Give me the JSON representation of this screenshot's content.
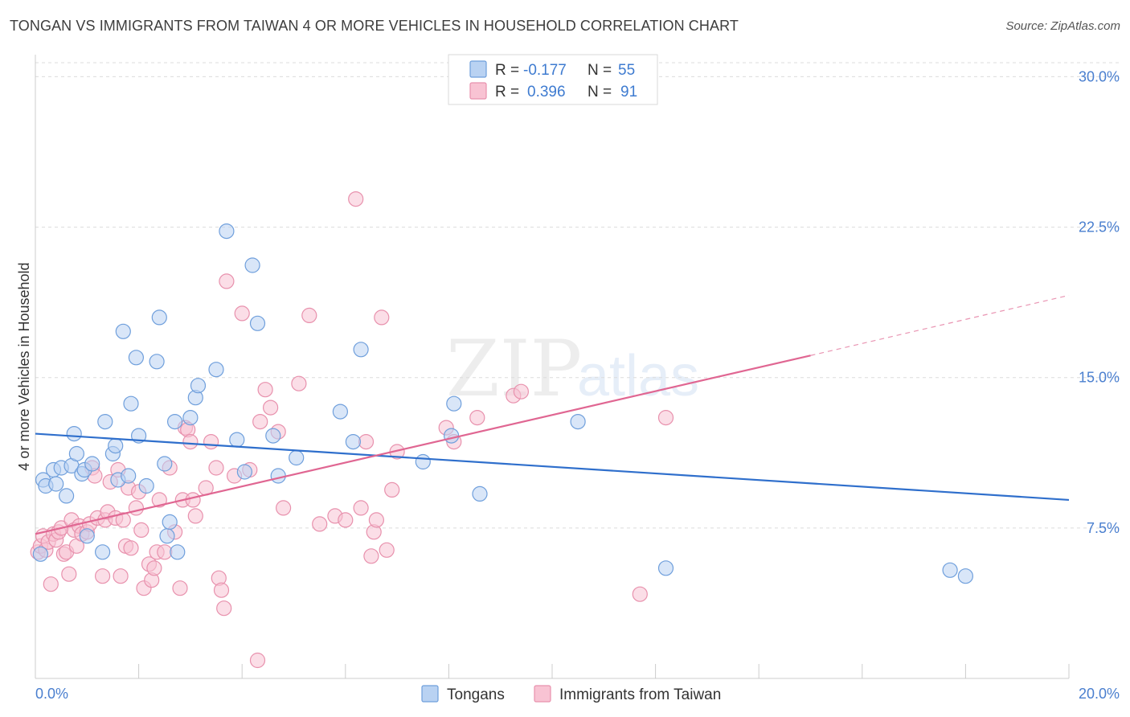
{
  "title": "TONGAN VS IMMIGRANTS FROM TAIWAN 4 OR MORE VEHICLES IN HOUSEHOLD CORRELATION CHART",
  "source": "Source: ZipAtlas.com",
  "watermark": {
    "zip": "ZIP",
    "atlas": "atlas"
  },
  "colors": {
    "tongans_fill": "#b9d2f2",
    "tongans_stroke": "#6f9fdc",
    "tongans_line": "#2f6fcc",
    "taiwan_fill": "#f8c3d3",
    "taiwan_stroke": "#e891ad",
    "taiwan_line": "#e06692",
    "grid": "#dcdcdc",
    "tick_label": "#4a7fcf"
  },
  "legend": {
    "rows": [
      {
        "r_label": "R =",
        "r_value": "-0.177",
        "n_label": "N =",
        "n_value": "55"
      },
      {
        "r_label": "R =",
        "r_value": "0.396",
        "n_label": "N =",
        "n_value": "91"
      }
    ]
  },
  "chart_data": {
    "type": "scatter",
    "title": "TONGAN VS IMMIGRANTS FROM TAIWAN 4 OR MORE VEHICLES IN HOUSEHOLD CORRELATION CHART",
    "xlabel": "",
    "ylabel": "4 or more Vehicles in Household",
    "xlim": [
      0,
      20
    ],
    "ylim": [
      0,
      31.5
    ],
    "x_tick_labels": [
      "0.0%",
      "20.0%"
    ],
    "y_ticks": [
      7.5,
      15.0,
      22.5,
      30.0
    ],
    "y_tick_labels": [
      "7.5%",
      "15.0%",
      "22.5%",
      "30.0%"
    ],
    "legend_position": "top-center",
    "series": [
      {
        "name": "Tongans",
        "r": -0.177,
        "n": 55,
        "trend": {
          "x": [
            0,
            20
          ],
          "y": [
            12.2,
            8.9
          ]
        },
        "points": [
          [
            0.1,
            6.2
          ],
          [
            0.15,
            9.9
          ],
          [
            0.2,
            9.6
          ],
          [
            0.35,
            10.4
          ],
          [
            0.4,
            9.7
          ],
          [
            0.5,
            10.5
          ],
          [
            0.6,
            9.1
          ],
          [
            0.7,
            10.6
          ],
          [
            0.75,
            12.2
          ],
          [
            0.8,
            11.2
          ],
          [
            0.9,
            10.2
          ],
          [
            0.95,
            10.4
          ],
          [
            1.0,
            7.1
          ],
          [
            1.1,
            10.7
          ],
          [
            1.3,
            6.3
          ],
          [
            1.35,
            12.8
          ],
          [
            1.5,
            11.2
          ],
          [
            1.55,
            11.6
          ],
          [
            1.6,
            9.9
          ],
          [
            1.7,
            17.3
          ],
          [
            1.8,
            10.1
          ],
          [
            1.85,
            13.7
          ],
          [
            1.95,
            16.0
          ],
          [
            2.0,
            12.1
          ],
          [
            2.15,
            9.6
          ],
          [
            2.35,
            15.8
          ],
          [
            2.4,
            18.0
          ],
          [
            2.5,
            10.7
          ],
          [
            2.55,
            7.1
          ],
          [
            2.6,
            7.8
          ],
          [
            2.7,
            12.8
          ],
          [
            2.75,
            6.3
          ],
          [
            3.0,
            13.0
          ],
          [
            3.1,
            14.0
          ],
          [
            3.15,
            14.6
          ],
          [
            3.5,
            15.4
          ],
          [
            3.7,
            22.3
          ],
          [
            3.9,
            11.9
          ],
          [
            4.05,
            10.3
          ],
          [
            4.2,
            20.6
          ],
          [
            4.3,
            17.7
          ],
          [
            4.6,
            12.1
          ],
          [
            4.7,
            10.1
          ],
          [
            5.05,
            11.0
          ],
          [
            5.9,
            13.3
          ],
          [
            6.15,
            11.8
          ],
          [
            6.3,
            16.4
          ],
          [
            7.5,
            10.8
          ],
          [
            8.05,
            12.1
          ],
          [
            8.1,
            13.7
          ],
          [
            8.6,
            9.2
          ],
          [
            10.5,
            12.8
          ],
          [
            12.2,
            5.5
          ],
          [
            17.7,
            5.4
          ],
          [
            18.0,
            5.1
          ]
        ]
      },
      {
        "name": "Immigrants from Taiwan",
        "r": 0.396,
        "n": 91,
        "trend": {
          "x": [
            0,
            15
          ],
          "y": [
            7.2,
            16.1
          ]
        },
        "trend_dashed": {
          "x": [
            15,
            20
          ],
          "y": [
            16.1,
            19.1
          ]
        },
        "points": [
          [
            0.05,
            6.3
          ],
          [
            0.1,
            6.6
          ],
          [
            0.15,
            7.1
          ],
          [
            0.2,
            6.4
          ],
          [
            0.25,
            6.8
          ],
          [
            0.3,
            4.7
          ],
          [
            0.35,
            7.2
          ],
          [
            0.4,
            6.9
          ],
          [
            0.45,
            7.3
          ],
          [
            0.5,
            7.5
          ],
          [
            0.55,
            6.2
          ],
          [
            0.6,
            6.3
          ],
          [
            0.65,
            5.2
          ],
          [
            0.7,
            7.9
          ],
          [
            0.75,
            7.4
          ],
          [
            0.8,
            6.6
          ],
          [
            0.85,
            7.6
          ],
          [
            0.9,
            7.2
          ],
          [
            1.0,
            7.3
          ],
          [
            1.05,
            7.7
          ],
          [
            1.1,
            10.5
          ],
          [
            1.15,
            10.1
          ],
          [
            1.2,
            8.0
          ],
          [
            1.3,
            5.1
          ],
          [
            1.35,
            7.9
          ],
          [
            1.4,
            8.3
          ],
          [
            1.45,
            9.8
          ],
          [
            1.55,
            8.0
          ],
          [
            1.6,
            10.4
          ],
          [
            1.65,
            5.1
          ],
          [
            1.7,
            7.9
          ],
          [
            1.75,
            6.6
          ],
          [
            1.8,
            9.5
          ],
          [
            1.85,
            6.5
          ],
          [
            1.95,
            8.5
          ],
          [
            2.0,
            9.3
          ],
          [
            2.05,
            7.4
          ],
          [
            2.1,
            4.5
          ],
          [
            2.2,
            5.7
          ],
          [
            2.25,
            4.9
          ],
          [
            2.3,
            5.5
          ],
          [
            2.35,
            6.3
          ],
          [
            2.4,
            8.9
          ],
          [
            2.5,
            6.3
          ],
          [
            2.6,
            10.5
          ],
          [
            2.7,
            7.3
          ],
          [
            2.8,
            4.5
          ],
          [
            2.85,
            8.9
          ],
          [
            2.9,
            12.5
          ],
          [
            2.95,
            12.4
          ],
          [
            3.0,
            11.8
          ],
          [
            3.05,
            8.9
          ],
          [
            3.1,
            8.1
          ],
          [
            3.3,
            9.5
          ],
          [
            3.4,
            11.8
          ],
          [
            3.5,
            10.5
          ],
          [
            3.55,
            5.0
          ],
          [
            3.6,
            4.4
          ],
          [
            3.65,
            3.5
          ],
          [
            3.7,
            19.8
          ],
          [
            3.85,
            10.1
          ],
          [
            4.0,
            18.2
          ],
          [
            4.15,
            10.4
          ],
          [
            4.3,
            0.9
          ],
          [
            4.35,
            12.8
          ],
          [
            4.45,
            14.4
          ],
          [
            4.55,
            13.5
          ],
          [
            4.7,
            12.3
          ],
          [
            4.8,
            8.5
          ],
          [
            5.1,
            14.7
          ],
          [
            5.3,
            18.1
          ],
          [
            5.5,
            7.7
          ],
          [
            5.8,
            8.1
          ],
          [
            6.0,
            7.9
          ],
          [
            6.2,
            23.9
          ],
          [
            6.3,
            8.5
          ],
          [
            6.4,
            11.8
          ],
          [
            6.5,
            6.1
          ],
          [
            6.55,
            7.3
          ],
          [
            6.6,
            7.9
          ],
          [
            6.7,
            18.0
          ],
          [
            6.8,
            6.4
          ],
          [
            6.9,
            9.4
          ],
          [
            7.0,
            11.3
          ],
          [
            7.95,
            12.5
          ],
          [
            8.1,
            11.8
          ],
          [
            8.55,
            13.0
          ],
          [
            9.25,
            14.1
          ],
          [
            9.4,
            14.3
          ],
          [
            11.7,
            4.2
          ],
          [
            12.2,
            13.0
          ]
        ]
      }
    ]
  },
  "bottom_legend": [
    {
      "label": "Tongans"
    },
    {
      "label": "Immigrants from Taiwan"
    }
  ]
}
